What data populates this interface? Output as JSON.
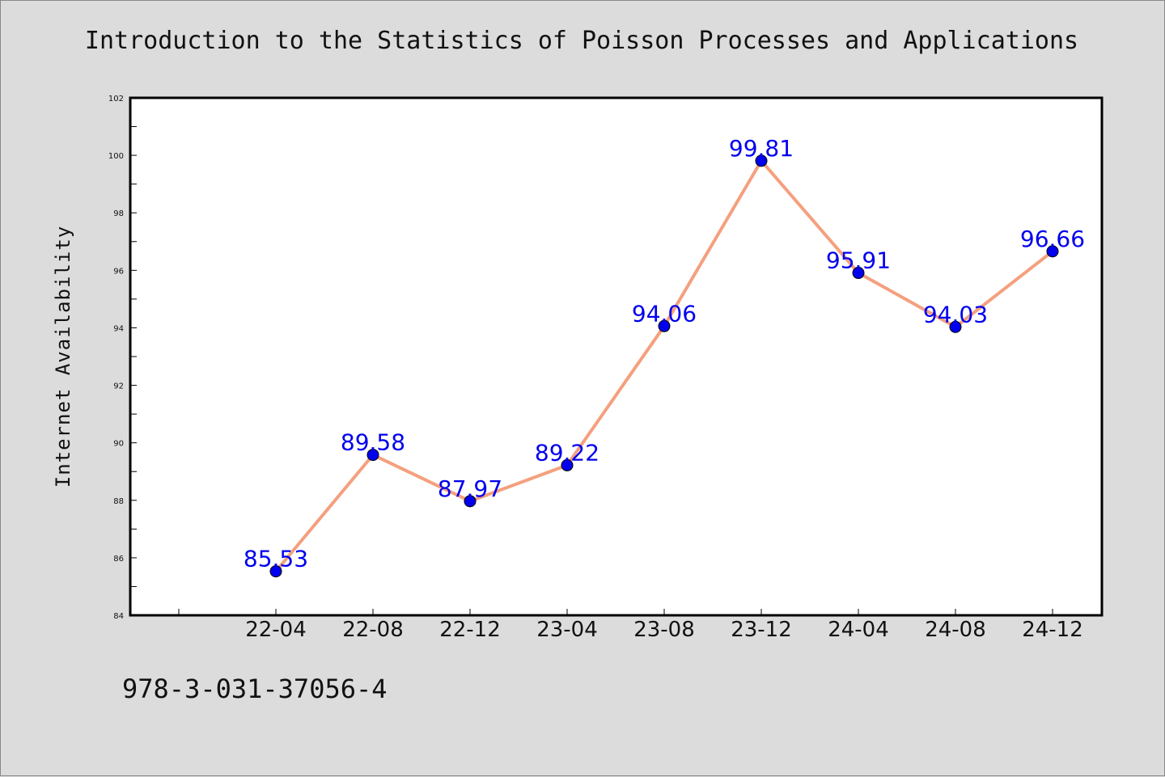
{
  "title": "Introduction to the Statistics of Poisson Processes and Applications",
  "footer_text": "978-3-031-37056-4",
  "colors": {
    "background": "#dcdcdc",
    "plot_background": "#ffffff",
    "line": "#f4a07e",
    "marker": "#0000ee",
    "data_label": "#0000ee"
  },
  "chart_data": {
    "type": "line",
    "title": "Introduction to the Statistics of Poisson Processes and Applications",
    "xlabel": "",
    "ylabel": "Internet Availability",
    "categories": [
      "22-04",
      "22-08",
      "22-12",
      "23-04",
      "23-08",
      "23-12",
      "24-04",
      "24-08",
      "24-12"
    ],
    "series": [
      {
        "values": [
          85.53,
          89.58,
          87.97,
          89.22,
          94.06,
          99.81,
          95.91,
          94.03,
          96.66
        ],
        "labels": [
          "85.53",
          "89.58",
          "87.97",
          "89.22",
          "94.06",
          "99.81",
          "95.91",
          "94.03",
          "96.66"
        ]
      }
    ],
    "ylim": [
      84,
      102
    ],
    "yticks": [
      84,
      86,
      88,
      90,
      92,
      94,
      96,
      98,
      100,
      102
    ],
    "grid": false,
    "legend": "none"
  }
}
